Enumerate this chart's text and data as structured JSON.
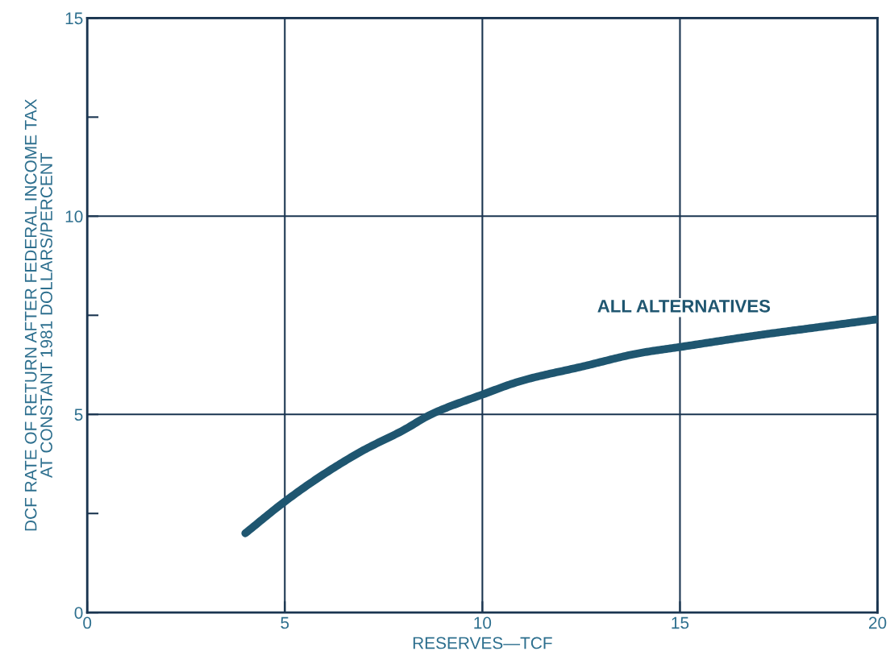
{
  "chart_data": {
    "type": "line",
    "xlabel": "RESERVES—TCF",
    "ylabel": "DCF RATE OF RETURN AFTER FEDERAL INCOME TAX\nAT CONSTANT 1981 DOLLARS/PERCENT",
    "xlim": [
      0,
      20
    ],
    "ylim": [
      0,
      15
    ],
    "xticks": [
      0,
      5,
      10,
      15,
      20
    ],
    "yticks": [
      0,
      {
        "value": 2.5,
        "label": null
      },
      5,
      {
        "value": 7.5,
        "label": null
      },
      10,
      {
        "value": 12.5,
        "label": null
      },
      15
    ],
    "grid": true,
    "marker": "none",
    "line_style": "solid",
    "series": [
      {
        "color": "#1f5670",
        "x": [
          4,
          5,
          6,
          7,
          8,
          8.7,
          10,
          11,
          12.5,
          14,
          15,
          17,
          18.5,
          20
        ],
        "values": [
          2.0,
          2.8,
          3.5,
          4.1,
          4.6,
          5.0,
          5.5,
          5.85,
          6.2,
          6.55,
          6.7,
          7.0,
          7.2,
          7.4
        ]
      }
    ],
    "annotations": [
      "ALL ALTERNATIVES"
    ]
  }
}
